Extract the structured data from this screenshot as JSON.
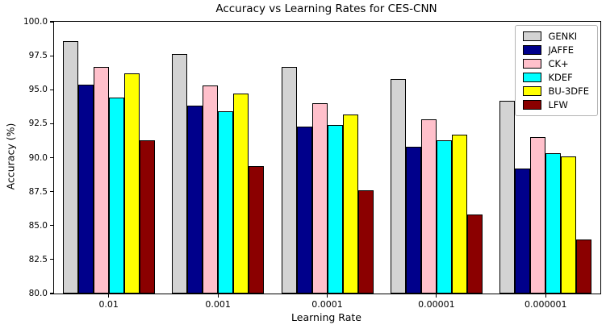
{
  "chart_data": {
    "type": "bar",
    "title": "Accuracy vs Learning Rates for CES-CNN",
    "xlabel": "Learning Rate",
    "ylabel": "Accuracy (%)",
    "ylim": [
      80.0,
      100.0
    ],
    "ytick_step": 2.5,
    "grid": false,
    "legend_position": "upper right",
    "bar_edge_color": "#000000",
    "categories": [
      "0.01",
      "0.001",
      "0.0001",
      "0.00001",
      "0.000001"
    ],
    "series": [
      {
        "name": "GENKI",
        "color": "#d3d3d3",
        "values": [
          98.6,
          97.6,
          96.7,
          95.8,
          94.2
        ]
      },
      {
        "name": "JAFFE",
        "color": "#00008b",
        "values": [
          95.4,
          93.8,
          92.3,
          90.8,
          89.2
        ]
      },
      {
        "name": "CK+",
        "color": "#ffc0cb",
        "values": [
          96.7,
          95.3,
          94.0,
          92.8,
          91.5
        ]
      },
      {
        "name": "KDEF",
        "color": "#00ffff",
        "values": [
          94.4,
          93.4,
          92.4,
          91.3,
          90.3
        ]
      },
      {
        "name": "BU-3DFE",
        "color": "#ffff00",
        "values": [
          96.2,
          94.7,
          93.2,
          91.7,
          90.1
        ]
      },
      {
        "name": "LFW",
        "color": "#8b0000",
        "values": [
          91.3,
          89.4,
          87.6,
          85.8,
          84.0
        ]
      }
    ]
  }
}
